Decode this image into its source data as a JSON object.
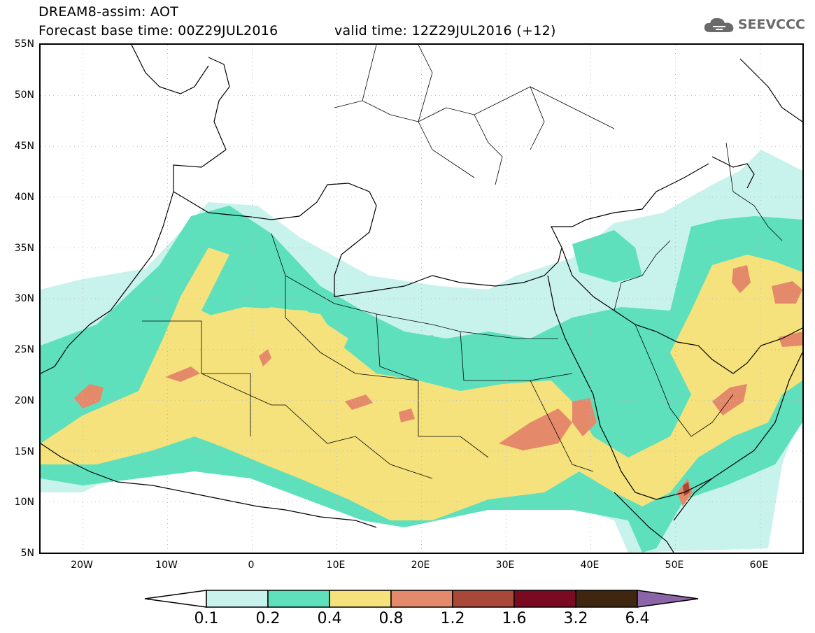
{
  "title": {
    "line1": "DREAM8-assim: AOT",
    "base_time": "Forecast base time: 00Z29JUL2016",
    "valid_time": "valid time: 12Z29JUL2016 (+12)"
  },
  "logo": {
    "text": "SEEVCCC",
    "icon": "cloud-icon"
  },
  "map": {
    "lon_range": [
      -25,
      65
    ],
    "lat_range": [
      5,
      55
    ],
    "lat_labels": [
      "55N",
      "50N",
      "45N",
      "40N",
      "35N",
      "30N",
      "25N",
      "20N",
      "15N",
      "10N",
      "5N"
    ],
    "lon_labels": [
      "20W",
      "10W",
      "0",
      "10E",
      "20E",
      "30E",
      "40E",
      "50E",
      "60E"
    ],
    "gridlines": "dotted"
  },
  "colorbar": {
    "labels": [
      "0.1",
      "0.2",
      "0.4",
      "0.8",
      "1.2",
      "1.6",
      "3.2",
      "6.4"
    ],
    "colors": [
      "#c8f2ec",
      "#5de0bb",
      "#f5e27c",
      "#e48a6a",
      "#a84838",
      "#7a0a22",
      "#3e2610",
      "#8c64a8"
    ],
    "under_color": "#ffffff"
  }
}
